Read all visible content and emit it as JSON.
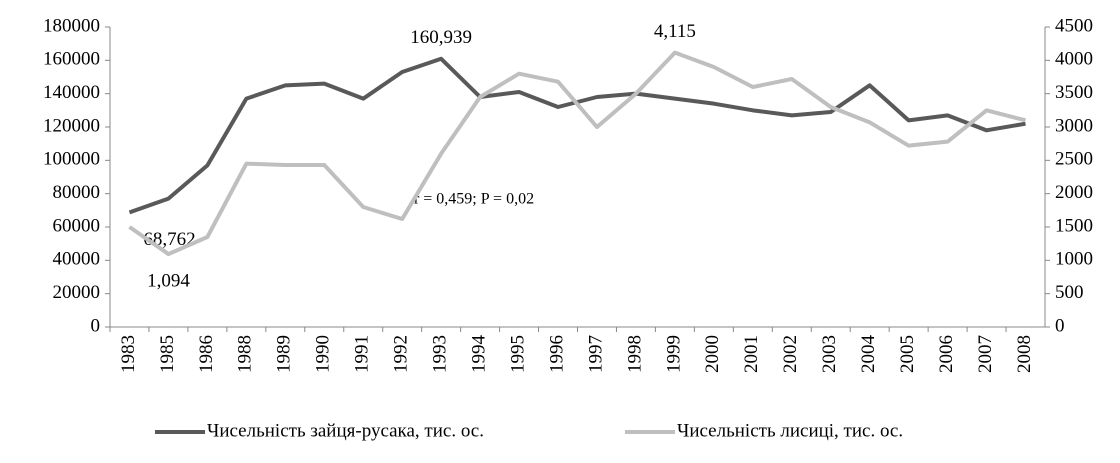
{
  "chart_data": {
    "type": "line",
    "categories": [
      "1983",
      "1985",
      "1986",
      "1988",
      "1989",
      "1990",
      "1991",
      "1992",
      "1993",
      "1994",
      "1995",
      "1996",
      "1997",
      "1998",
      "1999",
      "2000",
      "2001",
      "2002",
      "2003",
      "2004",
      "2005",
      "2006",
      "2007",
      "2008"
    ],
    "series": [
      {
        "name": "Чисельність зайця-русака, тис. ос.",
        "color": "#595959",
        "values": [
          68762,
          77000,
          97000,
          137000,
          145000,
          146000,
          137000,
          153000,
          160939,
          138000,
          141000,
          132000,
          138000,
          140000,
          137000,
          134000,
          130000,
          127000,
          129000,
          145000,
          124000,
          127000,
          118000,
          122000
        ],
        "value_labels": [
          "68,762",
          null,
          null,
          null,
          null,
          null,
          null,
          null,
          "160,939",
          null,
          null,
          null,
          null,
          null,
          null,
          null,
          null,
          null,
          null,
          null,
          null,
          null,
          null,
          null
        ]
      },
      {
        "name": "Чисельність лисиці, тис. ос.",
        "color": "#bfbfbf",
        "axis": "y2",
        "values": [
          1500,
          1094,
          1350,
          2450,
          2430,
          2430,
          1800,
          1620,
          2600,
          3450,
          3800,
          3680,
          3000,
          3500,
          4115,
          3900,
          3600,
          3720,
          3300,
          3070,
          2720,
          2780,
          3250,
          3100
        ],
        "value_labels": [
          null,
          "1,094",
          null,
          null,
          null,
          null,
          null,
          null,
          null,
          null,
          null,
          null,
          null,
          null,
          "4,115",
          null,
          null,
          null,
          null,
          null,
          null,
          null,
          null,
          null
        ]
      }
    ],
    "annotation": "r = 0,459; P = 0,02",
    "ylim": [
      0,
      180000
    ],
    "yticks": [
      0,
      20000,
      40000,
      60000,
      80000,
      100000,
      120000,
      140000,
      160000,
      180000
    ],
    "y2lim": [
      0,
      4500
    ],
    "y2ticks": [
      0,
      500,
      1000,
      1500,
      2000,
      2500,
      3000,
      3500,
      4000,
      4500
    ],
    "legend": "bottom"
  }
}
